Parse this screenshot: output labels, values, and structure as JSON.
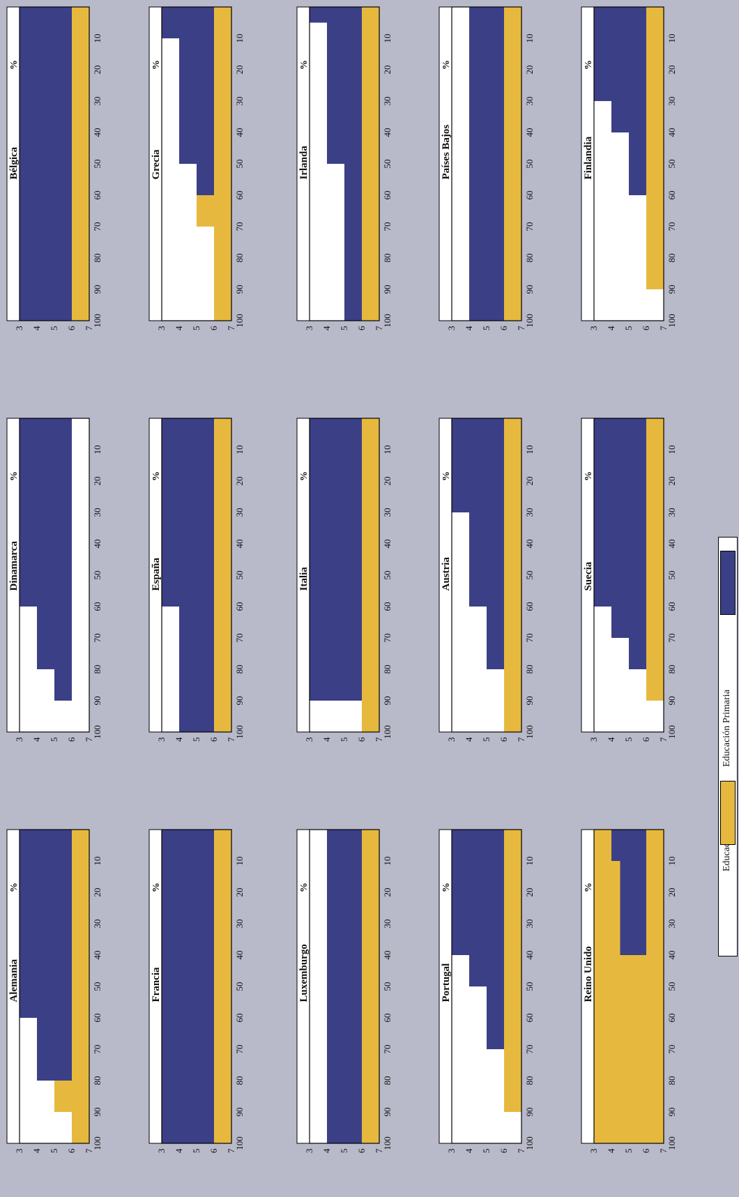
{
  "colors": {
    "preprimaria": "#3b3f86",
    "primaria": "#e6b93e",
    "page": "#b8b9c9"
  },
  "axis": {
    "percent_ticks": [
      10,
      20,
      30,
      40,
      50,
      60,
      70,
      80,
      90,
      100
    ],
    "age_ticks": [
      3,
      4,
      5,
      6,
      7
    ],
    "percent_symbol": "%"
  },
  "legend": {
    "preprimaria": "Educación Preprimaria",
    "primaria": "Educación Primaria"
  },
  "chart_data": [
    {
      "type": "area",
      "title": "Bélgica",
      "series": [
        {
          "name": "Educación Preprimaria",
          "steps": [
            [
              100,
              3
            ]
          ]
        },
        {
          "name": "Educación Primaria",
          "steps": [
            [
              100,
              6
            ]
          ]
        }
      ]
    },
    {
      "type": "area",
      "title": "Dinamarca",
      "series": [
        {
          "name": "Educación Preprimaria",
          "steps": [
            [
              60,
              3
            ],
            [
              80,
              4
            ],
            [
              90,
              5
            ]
          ]
        },
        {
          "name": "Educación Primaria",
          "steps": [
            [
              100,
              7
            ]
          ]
        }
      ]
    },
    {
      "type": "area",
      "title": "Alemania",
      "series": [
        {
          "name": "Educación Preprimaria",
          "steps": [
            [
              60,
              3
            ],
            [
              80,
              4
            ],
            [
              50,
              6
            ]
          ]
        },
        {
          "name": "Educación Primaria",
          "steps": [
            [
              100,
              6
            ],
            [
              90,
              5
            ]
          ]
        }
      ]
    },
    {
      "type": "area",
      "title": "Grecia",
      "series": [
        {
          "name": "Educación Preprimaria",
          "steps": [
            [
              10,
              3
            ],
            [
              50,
              4
            ],
            [
              60,
              5
            ]
          ]
        },
        {
          "name": "Educación Primaria",
          "steps": [
            [
              100,
              6
            ],
            [
              70,
              5
            ]
          ]
        }
      ]
    },
    {
      "type": "area",
      "title": "España",
      "series": [
        {
          "name": "Educación Preprimaria",
          "steps": [
            [
              60,
              3
            ],
            [
              100,
              4
            ]
          ]
        },
        {
          "name": "Educación Primaria",
          "steps": [
            [
              100,
              6
            ]
          ]
        }
      ]
    },
    {
      "type": "area",
      "title": "Francia",
      "series": [
        {
          "name": "Educación Preprimaria",
          "steps": [
            [
              100,
              3
            ]
          ]
        },
        {
          "name": "Educación Primaria",
          "steps": [
            [
              100,
              6
            ]
          ]
        }
      ]
    },
    {
      "type": "area",
      "title": "Irlanda",
      "series": [
        {
          "name": "Educación Preprimaria",
          "steps": [
            [
              5,
              3
            ],
            [
              50,
              4
            ],
            [
              100,
              5
            ]
          ]
        },
        {
          "name": "Educación Primaria",
          "steps": [
            [
              60,
              6
            ],
            [
              100,
              5
            ]
          ]
        }
      ]
    },
    {
      "type": "area",
      "title": "Italia",
      "series": [
        {
          "name": "Educación Preprimaria",
          "steps": [
            [
              90,
              3
            ]
          ]
        },
        {
          "name": "Educación Primaria",
          "steps": [
            [
              100,
              6
            ]
          ]
        }
      ]
    },
    {
      "type": "area",
      "title": "Luxemburgo",
      "series": [
        {
          "name": "Educación Preprimaria",
          "steps": [
            [
              100,
              4
            ]
          ]
        },
        {
          "name": "Educación Primaria",
          "steps": [
            [
              100,
              6
            ]
          ]
        }
      ]
    },
    {
      "type": "area",
      "title": "Países Bajos",
      "series": [
        {
          "name": "Educación Preprimaria",
          "steps": [
            [
              100,
              4
            ]
          ]
        },
        {
          "name": "Educación Primaria",
          "steps": [
            [
              100,
              6
            ]
          ]
        }
      ]
    },
    {
      "type": "area",
      "title": "Austria",
      "series": [
        {
          "name": "Educación Preprimaria",
          "steps": [
            [
              30,
              3
            ],
            [
              60,
              4
            ],
            [
              80,
              5
            ]
          ]
        },
        {
          "name": "Educación Primaria",
          "steps": [
            [
              100,
              6
            ]
          ]
        }
      ]
    },
    {
      "type": "area",
      "title": "Portugal",
      "series": [
        {
          "name": "Educación Preprimaria",
          "steps": [
            [
              40,
              3
            ],
            [
              50,
              4
            ],
            [
              70,
              5
            ]
          ]
        },
        {
          "name": "Educación Primaria",
          "steps": [
            [
              90,
              6
            ]
          ]
        }
      ]
    },
    {
      "type": "area",
      "title": "Finlandia",
      "series": [
        {
          "name": "Educación Preprimaria",
          "steps": [
            [
              30,
              3
            ],
            [
              40,
              4
            ],
            [
              60,
              5
            ]
          ]
        },
        {
          "name": "Educación Primaria",
          "steps": [
            [
              90,
              6
            ]
          ]
        }
      ]
    },
    {
      "type": "area",
      "title": "Suecia",
      "series": [
        {
          "name": "Educación Preprimaria",
          "steps": [
            [
              60,
              3
            ],
            [
              70,
              4
            ],
            [
              80,
              5
            ]
          ]
        },
        {
          "name": "Educación Primaria",
          "steps": [
            [
              90,
              6
            ],
            [
              100,
              7
            ]
          ]
        }
      ]
    },
    {
      "type": "area",
      "title": "Reino Unido",
      "series": [
        {
          "name": "Educación Preprimaria",
          "steps": [
            [
              10,
              4
            ],
            [
              40,
              4.5
            ]
          ]
        },
        {
          "name": "Educación Primaria",
          "steps": [
            [
              100,
              5
            ],
            [
              50,
              4
            ],
            [
              90,
              3.5
            ],
            [
              100,
              3
            ]
          ]
        }
      ]
    }
  ]
}
